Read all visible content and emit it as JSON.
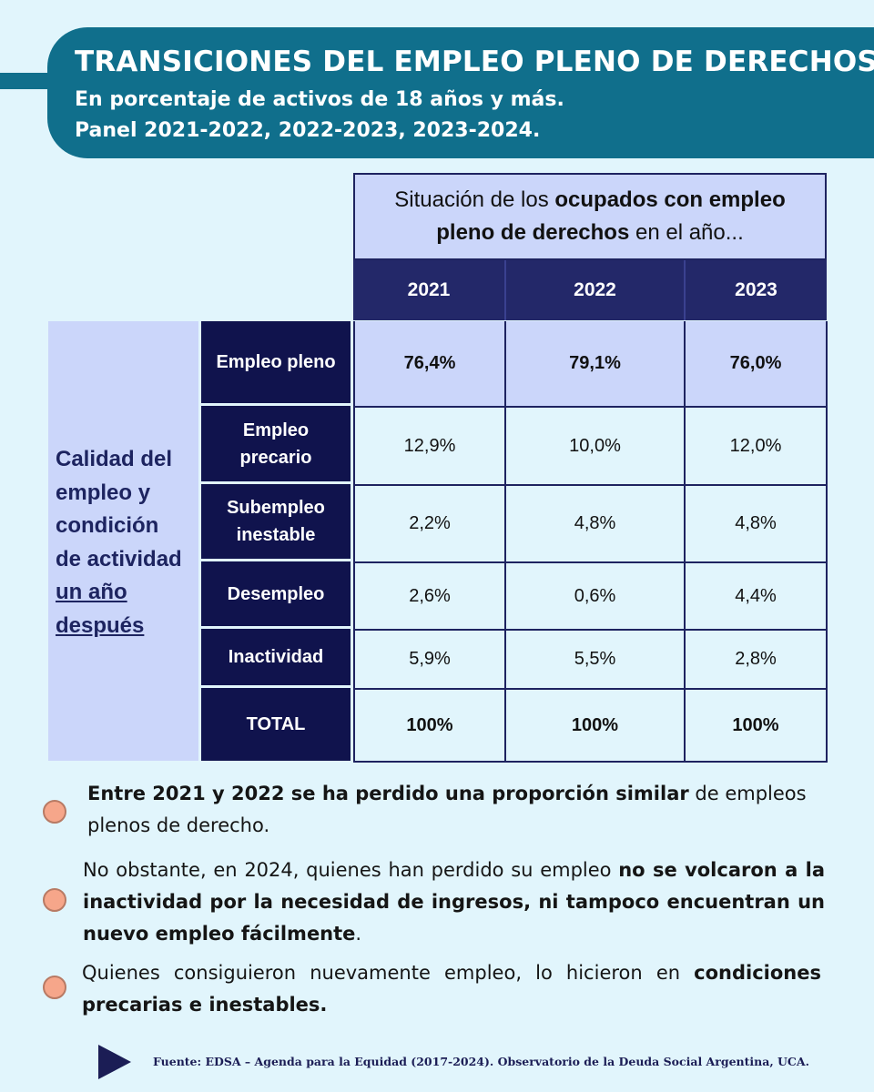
{
  "header": {
    "title": "TRANSICIONES DEL EMPLEO PLENO DE DERECHOS",
    "subtitle1": "En porcentaje de activos de 18 años y más.",
    "subtitle2": "Panel 2021-2022, 2022-2023, 2023-2024."
  },
  "table": {
    "head": {
      "part1": "Situación de los ",
      "part2": "ocupados con empleo pleno de derechos",
      "part3": " en el año..."
    },
    "years": [
      "2021",
      "2022",
      "2023"
    ],
    "left_label": {
      "line1": "Calidad del",
      "line2": "empleo y",
      "line3": "condición",
      "line4": "de actividad",
      "line5": "un año",
      "line6": "después"
    },
    "rows": [
      {
        "label": "Empleo pleno",
        "values": [
          "76,4%",
          "79,1%",
          "76,0%"
        ]
      },
      {
        "label": "Empleo precario",
        "values": [
          "12,9%",
          "10,0%",
          "12,0%"
        ]
      },
      {
        "label": "Subempleo inestable",
        "values": [
          "2,2%",
          "4,8%",
          "4,8%"
        ]
      },
      {
        "label": "Desempleo",
        "values": [
          "2,6%",
          "0,6%",
          "4,4%"
        ]
      },
      {
        "label": "Inactividad",
        "values": [
          "5,9%",
          "5,5%",
          "2,8%"
        ]
      },
      {
        "label": "TOTAL",
        "values": [
          "100%",
          "100%",
          "100%"
        ]
      }
    ]
  },
  "notes": {
    "note1": {
      "bold": "Entre 2021 y 2022 se ha perdido una proporción similar",
      "rest": " de empleos plenos de derecho."
    },
    "note2": {
      "pre": "No obstante, en 2024, quienes han perdido su empleo ",
      "bold": "no se  volcaron a la inactividad por la necesidad de ingresos, ni tampoco encuentran un nuevo empleo fácilmente",
      "post": "."
    },
    "note3": {
      "pre": "Quienes consiguieron nuevamente empleo, lo hicieron en ",
      "bold": "condiciones precarias e inestables."
    }
  },
  "source": "Fuente: EDSA – Agenda para la Equidad (2017-2024). Observatorio de la Deuda Social Argentina, UCA.",
  "colors": {
    "header_bg": "#106f8c",
    "page_bg": "#e1f5fc",
    "dark_navy": "#10134d",
    "light_blue": "#cbd6fa",
    "bullet": "#f6a68a"
  }
}
